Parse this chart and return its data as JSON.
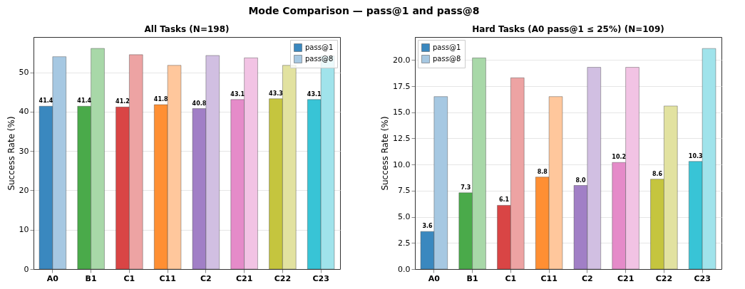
{
  "chart_data": [
    {
      "type": "bar",
      "title": "All Tasks (N=198)",
      "ylabel": "Success Rate (%)",
      "annotations": [
        "Mode Comparison — pass@1 and pass@8"
      ],
      "categories": [
        "A0",
        "B1",
        "C1",
        "C11",
        "C2",
        "C21",
        "C22",
        "C23"
      ],
      "series": [
        {
          "name": "pass@1",
          "color": "#3a88bf",
          "colors": [
            "#3a88bf",
            "#4aaa4a",
            "#d94545",
            "#ff8f33",
            "#a17fc6",
            "#e58bc9",
            "#c5c53e",
            "#38c4d6"
          ],
          "values": [
            41.4,
            41.4,
            41.2,
            41.8,
            40.8,
            43.1,
            43.3,
            43.1
          ],
          "value_labels": [
            "41.4",
            "41.4",
            "41.2",
            "41.8",
            "40.8",
            "43.1",
            "43.3",
            "43.1"
          ]
        },
        {
          "name": "pass@8",
          "color": "#a6c8e2",
          "colors": [
            "#a6c8e2",
            "#a8d8a8",
            "#eda3a3",
            "#ffc79c",
            "#d1bfe2",
            "#f2c3e4",
            "#e2e2a0",
            "#a0e3eb"
          ],
          "values": [
            54.0,
            56.1,
            54.5,
            51.8,
            54.3,
            53.7,
            51.8,
            54.2
          ]
        }
      ],
      "ylim": [
        0,
        59
      ],
      "yticks": [
        0,
        10,
        20,
        30,
        40,
        50
      ],
      "grid": "y",
      "legend": "top right"
    },
    {
      "type": "bar",
      "title": "Hard Tasks (A0 pass@1 ≤ 25%) (N=109)",
      "ylabel": "Success Rate (%)",
      "categories": [
        "A0",
        "B1",
        "C1",
        "C11",
        "C2",
        "C21",
        "C22",
        "C23"
      ],
      "series": [
        {
          "name": "pass@1",
          "color": "#3a88bf",
          "colors": [
            "#3a88bf",
            "#4aaa4a",
            "#d94545",
            "#ff8f33",
            "#a17fc6",
            "#e58bc9",
            "#c5c53e",
            "#38c4d6"
          ],
          "values": [
            3.6,
            7.3,
            6.1,
            8.8,
            8.0,
            10.2,
            8.6,
            10.3
          ],
          "value_labels": [
            "3.6",
            "7.3",
            "6.1",
            "8.8",
            "8.0",
            "10.2",
            "8.6",
            "10.3"
          ]
        },
        {
          "name": "pass@8",
          "color": "#a6c8e2",
          "colors": [
            "#a6c8e2",
            "#a8d8a8",
            "#eda3a3",
            "#ffc79c",
            "#d1bfe2",
            "#f2c3e4",
            "#e2e2a0",
            "#a0e3eb"
          ],
          "values": [
            16.5,
            20.2,
            18.3,
            16.5,
            19.3,
            19.3,
            15.6,
            21.1
          ]
        }
      ],
      "ylim": [
        0,
        22.2
      ],
      "yticks": [
        {
          "value": 0,
          "label": "0.0"
        },
        {
          "value": 2.5,
          "label": "2.5"
        },
        {
          "value": 5,
          "label": "5.0"
        },
        {
          "value": 7.5,
          "label": "7.5"
        },
        {
          "value": 10,
          "label": "10.0"
        },
        {
          "value": 12.5,
          "label": "12.5"
        },
        {
          "value": 15,
          "label": "15.0"
        },
        {
          "value": 17.5,
          "label": "17.5"
        },
        {
          "value": 20,
          "label": "20.0"
        }
      ],
      "grid": "y",
      "legend": "top left"
    }
  ]
}
